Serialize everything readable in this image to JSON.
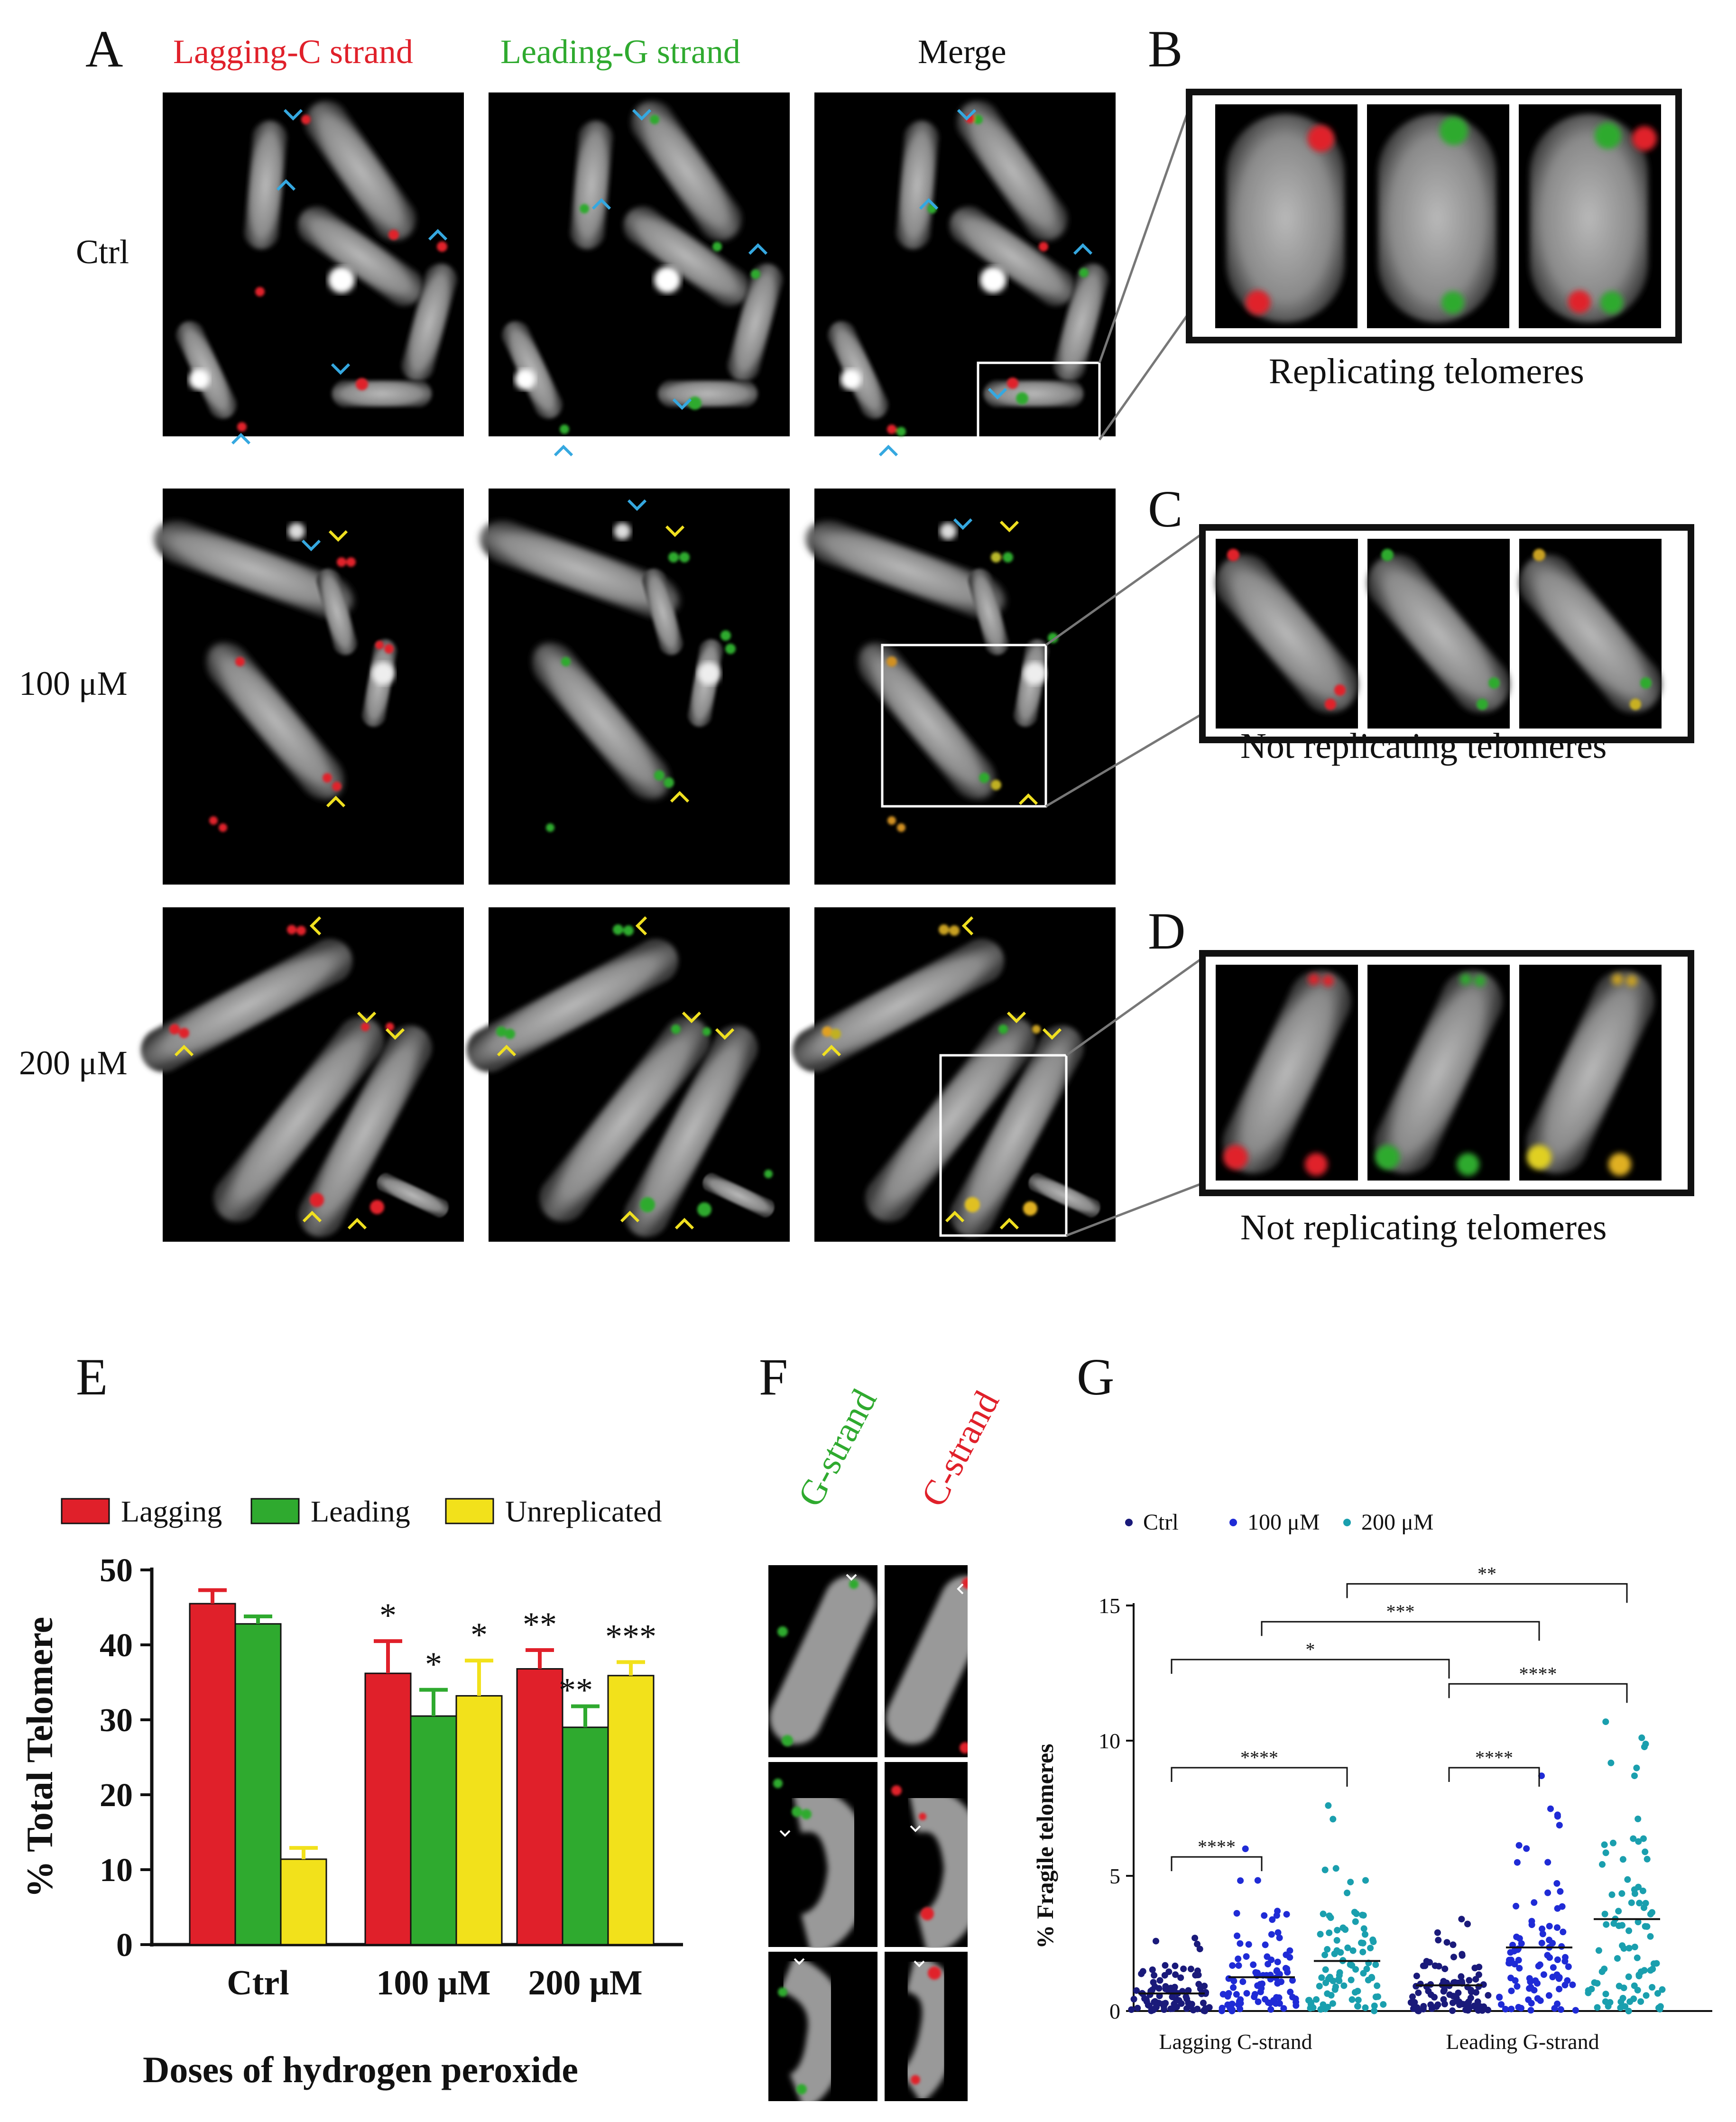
{
  "panel_labels": {
    "a": "A",
    "b": "B",
    "c": "C",
    "d": "D",
    "e": "E",
    "f": "F",
    "g": "G"
  },
  "columns": {
    "lagging": "Lagging-C strand",
    "leading": "Leading-G strand",
    "merge": "Merge"
  },
  "rows": {
    "ctrl": "Ctrl",
    "r100": "100 μM",
    "r200": "200 μM"
  },
  "captions": {
    "b": "Replicating telomeres",
    "c": "Not replicating telomeres",
    "d": "Not replicating telomeres"
  },
  "colors": {
    "red": "#e0202a",
    "green": "#2faa2f",
    "yellow": "#f2e11b",
    "navy": "#1a1a7a",
    "blue": "#1f2bd6",
    "teal": "#1a9fae",
    "cyan_marker": "#35a8e0",
    "yellow_marker": "#f0e020"
  },
  "panel_f": {
    "g_label": "G-strand",
    "c_label": "C-strand"
  },
  "chart_data": [
    {
      "type": "bar",
      "title": "",
      "xlabel": "Doses of hydrogen peroxide",
      "ylabel": "% Total Telomere",
      "ylim": [
        0,
        50
      ],
      "yticks": [
        "0",
        "10",
        "20",
        "30",
        "40",
        "50"
      ],
      "categories": [
        "Ctrl",
        "100 μM",
        "200 μM"
      ],
      "legend": [
        "Lagging",
        "Leading",
        "Unreplicated"
      ],
      "series": [
        {
          "name": "Lagging",
          "values": [
            45.5,
            36.2,
            36.8
          ],
          "errors": [
            1.8,
            4.3,
            2.5
          ],
          "sig": [
            "",
            "*",
            "**"
          ]
        },
        {
          "name": "Leading",
          "values": [
            42.8,
            30.5,
            29.0
          ],
          "errors": [
            1.0,
            3.5,
            2.8
          ],
          "sig": [
            "",
            "*",
            "**"
          ]
        },
        {
          "name": "Unreplicated",
          "values": [
            11.4,
            33.2,
            35.9
          ],
          "errors": [
            1.5,
            4.7,
            1.8
          ],
          "sig": [
            "",
            "*",
            "***"
          ]
        }
      ]
    },
    {
      "type": "scatter",
      "title": "",
      "xlabel": "",
      "ylabel": "% Fragile telomeres",
      "ylim": [
        0,
        15
      ],
      "yticks": [
        "0",
        "5",
        "10",
        "15"
      ],
      "groups": [
        "Lagging C-strand",
        "Leading G-strand"
      ],
      "legend": [
        "Ctrl",
        "100 μM",
        "200 μM"
      ],
      "series": [
        {
          "name": "Ctrl",
          "group": "Lagging C-strand",
          "mean": 0.65,
          "max": 2.7,
          "n": 90
        },
        {
          "name": "100 μM",
          "group": "Lagging C-strand",
          "mean": 1.25,
          "max": 6.0,
          "n": 90
        },
        {
          "name": "200 μM",
          "group": "Lagging C-strand",
          "mean": 1.85,
          "max": 7.6,
          "n": 90
        },
        {
          "name": "Ctrl",
          "group": "Leading G-strand",
          "mean": 0.95,
          "max": 3.4,
          "n": 90
        },
        {
          "name": "100 μM",
          "group": "Leading G-strand",
          "mean": 2.35,
          "max": 8.7,
          "n": 90
        },
        {
          "name": "200 μM",
          "group": "Leading G-strand",
          "mean": 3.4,
          "max": 10.7,
          "n": 90
        }
      ],
      "comparisons": [
        {
          "label": "****",
          "from": "Lagging C-strand Ctrl",
          "to": "Lagging C-strand 100 μM"
        },
        {
          "label": "****",
          "from": "Lagging C-strand Ctrl",
          "to": "Lagging C-strand 200 μM"
        },
        {
          "label": "*",
          "from": "Lagging C-strand Ctrl",
          "to": "Leading G-strand Ctrl"
        },
        {
          "label": "***",
          "from": "Lagging C-strand 100 μM",
          "to": "Leading G-strand 100 μM"
        },
        {
          "label": "**",
          "from": "Lagging C-strand 200 μM",
          "to": "Leading G-strand 200 μM"
        },
        {
          "label": "****",
          "from": "Leading G-strand Ctrl",
          "to": "Leading G-strand 100 μM"
        },
        {
          "label": "****",
          "from": "Leading G-strand Ctrl",
          "to": "Leading G-strand 200 μM"
        }
      ]
    }
  ]
}
